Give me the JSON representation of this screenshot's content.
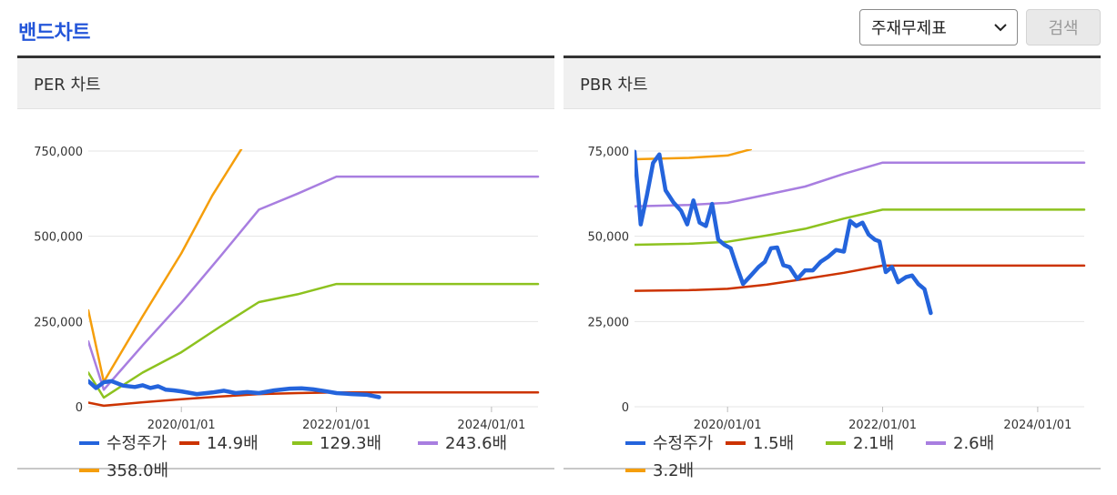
{
  "page": {
    "title": "밴드차트"
  },
  "controls": {
    "select_value": "주재무제표",
    "search_label": "검색"
  },
  "panels": {
    "per": {
      "title": "PER 차트"
    },
    "pbr": {
      "title": "PBR 차트"
    }
  },
  "colors": {
    "title": "#2456d9",
    "price": "#2464dc",
    "band1": "#cc3300",
    "band2": "#8dc21f",
    "band3": "#a87ee0",
    "band4": "#f59e0b"
  },
  "chart_data": [
    {
      "type": "line",
      "title": "PER 차트",
      "ylim": [
        0,
        750000
      ],
      "yticks": [
        "750,000",
        "500,000",
        "250,000",
        "0"
      ],
      "ytick_values": [
        750000,
        500000,
        250000,
        0
      ],
      "xticks": [
        "2020/01/01",
        "2022/01/01",
        "2024/01/01"
      ],
      "xtick_values": [
        2020.0,
        2022.0,
        2024.0
      ],
      "xlim": [
        2018.8,
        2024.6
      ],
      "grid": true,
      "legend": "bottom",
      "series": [
        {
          "name": "14.9배",
          "color": "#cc3300",
          "x": [
            2018.8,
            2019.0,
            2019.5,
            2020.0,
            2020.5,
            2021.0,
            2021.5,
            2022.0,
            2022.5,
            2023.0,
            2023.5,
            2024.0,
            2024.6
          ],
          "values": [
            12000,
            3000,
            13000,
            22000,
            30000,
            37000,
            40000,
            42000,
            42000,
            42000,
            42000,
            42000,
            42000
          ]
        },
        {
          "name": "129.3배",
          "color": "#8dc21f",
          "x": [
            2018.8,
            2019.0,
            2019.5,
            2020.0,
            2020.5,
            2021.0,
            2021.5,
            2022.0,
            2022.5,
            2023.0,
            2023.5,
            2024.0,
            2024.6
          ],
          "values": [
            100000,
            27000,
            100000,
            160000,
            235000,
            307000,
            330000,
            360000,
            360000,
            360000,
            360000,
            360000,
            360000
          ]
        },
        {
          "name": "243.6배",
          "color": "#a87ee0",
          "x": [
            2018.8,
            2019.0,
            2019.5,
            2020.0,
            2020.5,
            2021.0,
            2021.5,
            2022.0,
            2022.5,
            2023.0,
            2023.5,
            2024.0,
            2024.6
          ],
          "values": [
            192000,
            50000,
            180000,
            305000,
            440000,
            578000,
            625000,
            675000,
            675000,
            675000,
            675000,
            675000,
            675000
          ]
        },
        {
          "name": "358.0배",
          "color": "#f59e0b",
          "x": [
            2018.8,
            2019.0,
            2019.5,
            2020.0,
            2020.4,
            2020.8
          ],
          "values": [
            283000,
            73000,
            265000,
            450000,
            620000,
            765000
          ]
        },
        {
          "name": "수정주가",
          "color": "#2464dc",
          "bold": true,
          "x": [
            2018.8,
            2018.9,
            2019.0,
            2019.1,
            2019.25,
            2019.4,
            2019.5,
            2019.6,
            2019.7,
            2019.8,
            2019.9,
            2020.0,
            2020.2,
            2020.4,
            2020.55,
            2020.7,
            2020.85,
            2021.0,
            2021.2,
            2021.4,
            2021.55,
            2021.7,
            2021.85,
            2022.0,
            2022.2,
            2022.4,
            2022.55
          ],
          "values": [
            75000,
            55000,
            72000,
            75000,
            62000,
            58000,
            63000,
            55000,
            60000,
            50000,
            48000,
            45000,
            37000,
            42000,
            47000,
            40000,
            43000,
            40000,
            48000,
            53000,
            54000,
            51000,
            46000,
            40000,
            37000,
            35000,
            28000
          ]
        }
      ]
    },
    {
      "type": "line",
      "title": "PBR 차트",
      "ylim": [
        0,
        75000
      ],
      "yticks": [
        "75,000",
        "50,000",
        "25,000",
        "0"
      ],
      "ytick_values": [
        75000,
        50000,
        25000,
        0
      ],
      "xticks": [
        "2020/01/01",
        "2022/01/01",
        "2024/01/01"
      ],
      "xtick_values": [
        2020.0,
        2022.0,
        2024.0
      ],
      "xlim": [
        2018.8,
        2024.6
      ],
      "grid": true,
      "legend": "bottom",
      "series": [
        {
          "name": "1.5배",
          "color": "#cc3300",
          "x": [
            2018.8,
            2019.5,
            2020.0,
            2020.5,
            2021.0,
            2021.5,
            2022.0,
            2022.5,
            2023.0,
            2023.5,
            2024.0,
            2024.6
          ],
          "values": [
            34000,
            34200,
            34600,
            35800,
            37500,
            39300,
            41400,
            41400,
            41400,
            41400,
            41400,
            41400
          ]
        },
        {
          "name": "2.1배",
          "color": "#8dc21f",
          "x": [
            2018.8,
            2019.5,
            2020.0,
            2020.5,
            2021.0,
            2021.5,
            2022.0,
            2022.5,
            2023.0,
            2023.5,
            2024.0,
            2024.6
          ],
          "values": [
            47500,
            47800,
            48400,
            50200,
            52200,
            55200,
            57800,
            57800,
            57800,
            57800,
            57800,
            57800
          ]
        },
        {
          "name": "2.6배",
          "color": "#a87ee0",
          "x": [
            2018.8,
            2019.5,
            2020.0,
            2020.5,
            2021.0,
            2021.5,
            2022.0,
            2022.5,
            2023.0,
            2023.5,
            2024.0,
            2024.6
          ],
          "values": [
            58800,
            59200,
            59800,
            62200,
            64600,
            68300,
            71600,
            71600,
            71600,
            71600,
            71600,
            71600
          ]
        },
        {
          "name": "3.2배",
          "color": "#f59e0b",
          "x": [
            2018.8,
            2019.5,
            2020.0,
            2020.3
          ],
          "values": [
            72600,
            73000,
            73700,
            75500
          ]
        },
        {
          "name": "수정주가",
          "color": "#2464dc",
          "bold": true,
          "x": [
            2018.8,
            2018.88,
            2018.96,
            2019.04,
            2019.12,
            2019.2,
            2019.3,
            2019.4,
            2019.48,
            2019.56,
            2019.64,
            2019.72,
            2019.8,
            2019.88,
            2019.96,
            2020.04,
            2020.12,
            2020.2,
            2020.3,
            2020.4,
            2020.48,
            2020.56,
            2020.64,
            2020.72,
            2020.8,
            2020.9,
            2021.0,
            2021.1,
            2021.2,
            2021.3,
            2021.4,
            2021.5,
            2021.58,
            2021.66,
            2021.74,
            2021.82,
            2021.9,
            2021.96,
            2022.04,
            2022.12,
            2022.2,
            2022.3,
            2022.38,
            2022.46,
            2022.54,
            2022.62
          ],
          "values": [
            74800,
            53500,
            62000,
            71500,
            74000,
            63500,
            60000,
            57500,
            53500,
            60500,
            54000,
            53000,
            59500,
            49000,
            47500,
            46500,
            41000,
            36000,
            38500,
            41000,
            42500,
            46500,
            46700,
            41500,
            41000,
            37500,
            40000,
            40000,
            42500,
            44000,
            46000,
            45500,
            54500,
            53000,
            54000,
            50500,
            49000,
            48500,
            39500,
            41000,
            36500,
            38000,
            38500,
            36000,
            34500,
            27500
          ]
        }
      ]
    }
  ]
}
